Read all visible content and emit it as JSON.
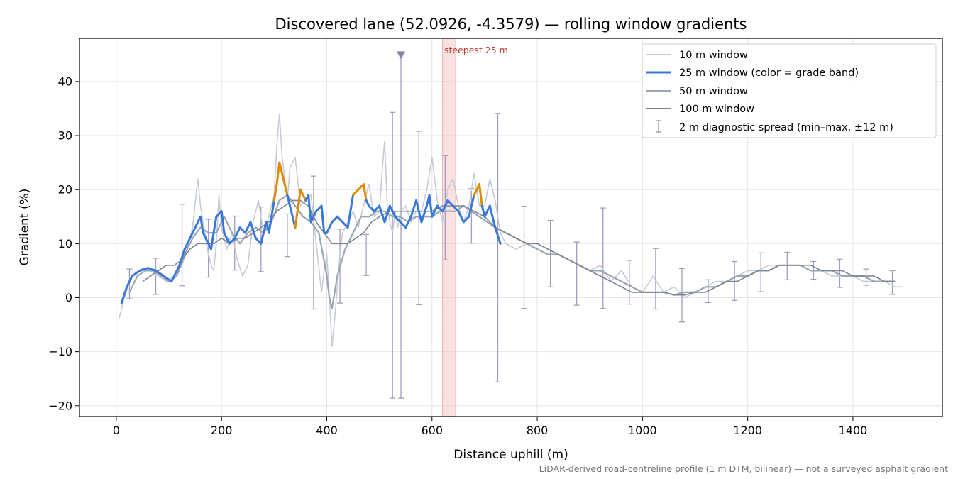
{
  "chart_data": {
    "type": "line",
    "title": "Discovered lane (52.0926, -4.3579) — rolling window gradients",
    "xlabel": "Distance uphill (m)",
    "ylabel": "Gradient (%)",
    "footnote": "LiDAR-derived road-centreline profile (1 m DTM, bilinear) — not a surveyed asphalt gradient",
    "xlim": [
      -70,
      1570
    ],
    "ylim": [
      -22,
      48
    ],
    "x_ticks": [
      0,
      200,
      400,
      600,
      800,
      1000,
      1200,
      1400
    ],
    "y_ticks": [
      -20,
      -10,
      0,
      10,
      20,
      30,
      40
    ],
    "x_tick_labels": [
      "0",
      "200",
      "400",
      "600",
      "800",
      "1000",
      "1200",
      "1400"
    ],
    "y_tick_labels": [
      "−20",
      "−10",
      "0",
      "10",
      "20",
      "30",
      "40"
    ],
    "grid": true,
    "legend_position": "top-right",
    "legend": [
      {
        "label": "10 m window",
        "color": "#c5ccd6"
      },
      {
        "label": "25 m window (color = grade band)",
        "color": "#3a78d8"
      },
      {
        "label": "50 m window",
        "color": "#9aa6b6"
      },
      {
        "label": "100 m window",
        "color": "#7f8591"
      },
      {
        "label": "2 m diagnostic spread (min–max, ±12 m)",
        "color": "#a49cbd"
      }
    ],
    "grade_band_colors": {
      "normal": "#3a78d8",
      "steep": "#e08a00",
      "threshold": 20
    },
    "steepest_window": {
      "label": "steepest 25 m",
      "x0": 620,
      "x1": 645,
      "color": "#f4c7c9"
    },
    "max_marker": {
      "x": 541,
      "y": 44.8,
      "color": "#8c7ea8"
    },
    "series": [
      {
        "name": "10 m window",
        "color": "#c5ccd6",
        "x": [
          5,
          15,
          25,
          35,
          50,
          65,
          80,
          95,
          110,
          125,
          135,
          145,
          155,
          160,
          165,
          170,
          175,
          180,
          185,
          190,
          195,
          200,
          210,
          220,
          230,
          240,
          250,
          260,
          270,
          280,
          290,
          300,
          305,
          310,
          315,
          320,
          325,
          330,
          340,
          350,
          360,
          370,
          380,
          390,
          395,
          400,
          405,
          410,
          415,
          420,
          425,
          430,
          440,
          450,
          460,
          470,
          480,
          490,
          500,
          505,
          510,
          515,
          520,
          525,
          530,
          535,
          540,
          550,
          560,
          570,
          580,
          590,
          600,
          610,
          620,
          630,
          640,
          650,
          660,
          670,
          680,
          690,
          700,
          710,
          720,
          730,
          740,
          760,
          780,
          800,
          820,
          840,
          860,
          880,
          900,
          920,
          940,
          960,
          980,
          1000,
          1020,
          1040,
          1060,
          1080,
          1100,
          1120,
          1140,
          1160,
          1180,
          1200,
          1220,
          1240,
          1260,
          1280,
          1300,
          1320,
          1340,
          1360,
          1380,
          1400,
          1420,
          1440,
          1460,
          1480,
          1495
        ],
        "y": [
          -4,
          0,
          3,
          4.5,
          5.5,
          5,
          4,
          3,
          4,
          6,
          9,
          13,
          22,
          17,
          14,
          11,
          8,
          6,
          5,
          10,
          19,
          13,
          9,
          12,
          7,
          4,
          6,
          14,
          18,
          12,
          15,
          19,
          28,
          34,
          26,
          22,
          18,
          24,
          26,
          17,
          18,
          19,
          10,
          1,
          5,
          8,
          0,
          -9,
          -4,
          2,
          8,
          12,
          14,
          16,
          13,
          17,
          21,
          15,
          16,
          23,
          29,
          17,
          14,
          12,
          16,
          13,
          16,
          17,
          14,
          16,
          16,
          20,
          26,
          18,
          14,
          20,
          22,
          17,
          14,
          17,
          23,
          17,
          17,
          22,
          18,
          12,
          10,
          9,
          10,
          9,
          8,
          8,
          7,
          6,
          5,
          6,
          3,
          5,
          2,
          1,
          4,
          1,
          2,
          0,
          1,
          2,
          3,
          3,
          4,
          5,
          5,
          6,
          6,
          6,
          6,
          5,
          5,
          4,
          4,
          4,
          3,
          3,
          3,
          2,
          2
        ]
      },
      {
        "name": "25 m window",
        "color": "#3a78d8",
        "x": [
          10,
          20,
          30,
          45,
          60,
          75,
          90,
          105,
          120,
          130,
          140,
          150,
          160,
          165,
          170,
          180,
          190,
          200,
          205,
          215,
          225,
          235,
          245,
          255,
          265,
          275,
          285,
          290,
          300,
          305,
          310,
          315,
          320,
          325,
          330,
          340,
          350,
          360,
          365,
          370,
          380,
          390,
          395,
          400,
          410,
          420,
          430,
          440,
          450,
          460,
          470,
          475,
          480,
          490,
          500,
          510,
          520,
          530,
          540,
          550,
          560,
          570,
          580,
          590,
          595,
          600,
          610,
          620,
          630,
          640,
          650,
          660,
          670,
          680,
          690,
          695,
          700,
          710,
          720,
          730
        ],
        "y": [
          -1,
          2,
          4,
          5,
          5.5,
          5,
          4,
          3,
          6,
          9,
          11,
          13,
          15,
          12,
          11,
          9,
          15,
          16,
          12,
          10,
          11,
          13,
          12,
          14,
          11,
          10,
          14,
          12,
          18,
          21,
          25,
          23,
          21,
          19,
          17,
          13,
          20,
          18,
          19,
          14,
          16,
          17,
          12,
          12,
          14,
          15,
          14,
          13,
          19,
          20,
          21,
          18,
          17,
          16,
          17,
          14,
          17,
          15,
          14,
          13,
          15,
          18,
          14,
          17,
          19,
          15,
          17,
          16,
          18,
          17,
          16,
          14,
          15,
          19,
          21,
          17,
          15,
          17,
          13,
          10
        ]
      },
      {
        "name": "50 m window",
        "color": "#9aa6b6",
        "x": [
          25,
          40,
          55,
          70,
          85,
          100,
          115,
          130,
          145,
          160,
          175,
          190,
          205,
          220,
          235,
          250,
          265,
          280,
          295,
          310,
          325,
          340,
          355,
          370,
          385,
          400,
          405,
          410,
          415,
          420,
          435,
          450,
          465,
          480,
          495,
          510,
          525,
          540,
          555,
          570,
          585,
          600,
          615,
          630,
          645,
          660,
          675,
          690,
          705,
          720,
          740,
          760,
          780,
          800,
          820,
          840,
          860,
          880,
          900,
          920,
          940,
          960,
          980,
          1000,
          1020,
          1040,
          1060,
          1080,
          1100,
          1120,
          1140,
          1160,
          1180,
          1200,
          1220,
          1240,
          1260,
          1280,
          1300,
          1320,
          1340,
          1360,
          1380,
          1400,
          1420,
          1440,
          1460,
          1480
        ],
        "y": [
          1,
          4,
          5,
          5,
          4,
          3,
          4,
          8,
          11,
          13,
          12,
          12,
          15,
          12,
          10,
          12,
          13,
          12,
          14,
          18,
          19,
          17,
          15,
          14,
          12,
          4,
          0,
          -2,
          1,
          4,
          9,
          12,
          15,
          15,
          16,
          16,
          15,
          15,
          14,
          15,
          15,
          15,
          16,
          16,
          16,
          17,
          16,
          15,
          14,
          13,
          12,
          11,
          10,
          9,
          8,
          8,
          7,
          6,
          5,
          5,
          4,
          3,
          2,
          1,
          1,
          1,
          0.5,
          1,
          1,
          2,
          2,
          3,
          4,
          4,
          5,
          5,
          6,
          6,
          6,
          5,
          5,
          5,
          4,
          4,
          4,
          3,
          3,
          3
        ]
      },
      {
        "name": "100 m window",
        "color": "#7f8591",
        "x": [
          50,
          65,
          80,
          95,
          110,
          125,
          140,
          155,
          170,
          185,
          200,
          215,
          230,
          245,
          260,
          275,
          290,
          305,
          320,
          335,
          350,
          365,
          380,
          395,
          410,
          425,
          440,
          455,
          470,
          485,
          500,
          520,
          540,
          560,
          580,
          600,
          620,
          640,
          660,
          680,
          700,
          720,
          740,
          760,
          780,
          800,
          820,
          840,
          860,
          880,
          900,
          920,
          940,
          960,
          980,
          1000,
          1020,
          1040,
          1060,
          1080,
          1100,
          1120,
          1140,
          1160,
          1180,
          1200,
          1220,
          1240,
          1260,
          1280,
          1300,
          1320,
          1340,
          1360,
          1380,
          1400,
          1420,
          1440,
          1460,
          1480
        ],
        "y": [
          3,
          4,
          5,
          6,
          6,
          7,
          9,
          10,
          10,
          10,
          11,
          10,
          11,
          11,
          12,
          13,
          14,
          16,
          17,
          18,
          18,
          17,
          14,
          12,
          10,
          10,
          10,
          11,
          12,
          14,
          15,
          16,
          16,
          16,
          16,
          16,
          17,
          17,
          17,
          16,
          15,
          13,
          12,
          11,
          10,
          10,
          9,
          8,
          7,
          6,
          5,
          4,
          3,
          2,
          1,
          1,
          1,
          1,
          0.5,
          0.5,
          1,
          1,
          2,
          3,
          3,
          4,
          5,
          5,
          6,
          6,
          6,
          6,
          5,
          5,
          5,
          4,
          4,
          4,
          3,
          3
        ]
      }
    ],
    "error_bars": {
      "name": "2 m diagnostic spread (min–max, ±12 m)",
      "color": "#a49cbd",
      "x": [
        25,
        75,
        125,
        175,
        225,
        275,
        325,
        375,
        425,
        475,
        525,
        541,
        575,
        625,
        675,
        725,
        775,
        825,
        875,
        925,
        975,
        1025,
        1075,
        1125,
        1175,
        1225,
        1275,
        1325,
        1375,
        1425,
        1475
      ],
      "mid": [
        2.5,
        4,
        9.5,
        9,
        10.5,
        11,
        11.5,
        12,
        5.5,
        8,
        8,
        13,
        14.5,
        16.5,
        15,
        9,
        7.5,
        8,
        5.5,
        7,
        4,
        2,
        0.5,
        1.3,
        3,
        5.5,
        5.8,
        5.1,
        4.2,
        3.8,
        2.8
      ],
      "low": [
        -0.2,
        0.6,
        2.2,
        3.8,
        5.1,
        4.8,
        7.6,
        -2.1,
        -1,
        4.1,
        -18.6,
        -18.6,
        -1.3,
        7,
        10.1,
        -15.6,
        -2,
        2,
        -1.4,
        -2,
        -1.2,
        -2.1,
        -4.5,
        -0.9,
        -0.5,
        1.1,
        3.3,
        3.4,
        1.9,
        2.3,
        0.6
      ],
      "high": [
        5.3,
        7.3,
        17.3,
        14.5,
        15.1,
        16.8,
        15.5,
        22.5,
        12.7,
        11.7,
        34.3,
        44.5,
        30.8,
        26.3,
        20.2,
        34.1,
        16.9,
        14.3,
        10.3,
        16.6,
        6.9,
        9.1,
        5.4,
        3.3,
        6.7,
        8.3,
        8.4,
        6.7,
        7.1,
        5.3,
        5
      ]
    }
  }
}
